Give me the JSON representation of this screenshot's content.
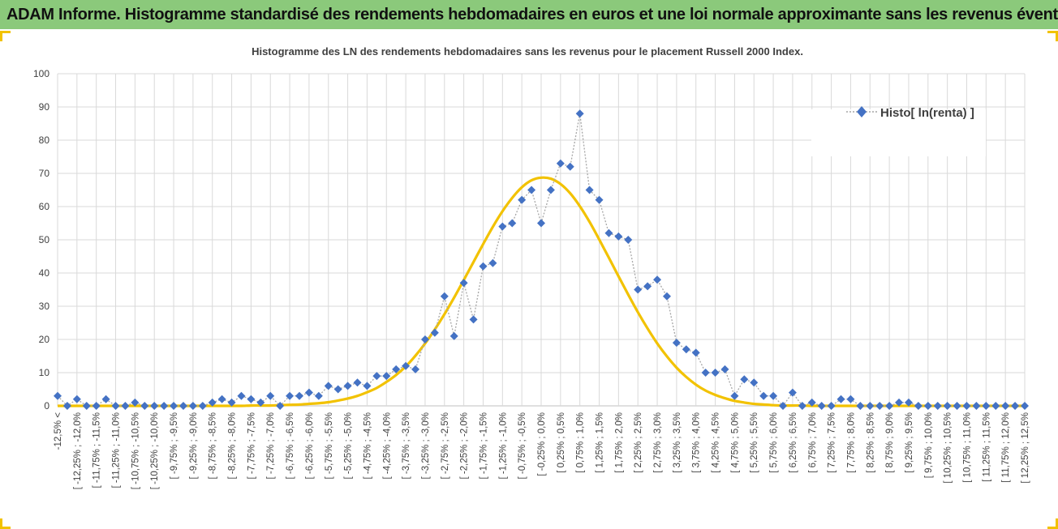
{
  "header": {
    "title": "ADAM Informe. Histogramme standardisé des rendements hebdomadaires en euros et une loi normale approximante sans les revenus éventuels"
  },
  "colors": {
    "banner": "#8bc97b",
    "series": "#4472c4",
    "curve": "#f2c200",
    "grid": "#d9d9d9",
    "accent": "#f2c200"
  },
  "chart_data": {
    "type": "line",
    "title": "Histogramme  des LN des rendements hebdomadaires sans les revenus pour le placement Russell 2000  Index.",
    "ylim": [
      0,
      100
    ],
    "yticks": [
      0,
      10,
      20,
      30,
      40,
      50,
      60,
      70,
      80,
      90,
      100
    ],
    "grid": true,
    "legend_position": "top-right",
    "x_tick_labels": [
      "-12,5% <",
      "[ -12,25% ; -12,0%",
      "[ -11,75% ; -11,5%",
      "[ -11,25% ; -11,0%",
      "[ -10,75% ; -10,5%",
      "[ -10,25% ; -10,0%",
      "[ -9,75% ; -9,5%",
      "[ -9,25% ; -9,0%",
      "[ -8,75% ; -8,5%",
      "[ -8,25% ; -8,0%",
      "[ -7,75% ; -7,5%",
      "[ -7,25% ; -7,0%",
      "[ -6,75% ; -6,5%",
      "[ -6,25% ; -6,0%",
      "[ -5,75% ; -5,5%",
      "[ -5,25% ; -5,0%",
      "[ -4,75% ; -4,5%",
      "[ -4,25% ; -4,0%",
      "[ -3,75% ; -3,5%",
      "[ -3,25% ; -3,0%",
      "[ -2,75% ; -2,5%",
      "[ -2,25% ; -2,0%",
      "[ -1,75% ; -1,5%",
      "[ -1,25% ; -1,0%",
      "[ -0,75% ; -0,5%",
      "[ -0,25% ; 0,0%",
      "[ 0,25% ; 0,5%",
      "[ 0,75% ; 1,0%",
      "[ 1,25% ; 1,5%",
      "[ 1,75% ; 2,0%",
      "[ 2,25% ; 2,5%",
      "[ 2,75% ; 3,0%",
      "[ 3,25% ; 3,5%",
      "[ 3,75% ; 4,0%",
      "[ 4,25% ; 4,5%",
      "[ 4,75% ; 5,0%",
      "[ 5,25% ; 5,5%",
      "[ 5,75% ; 6,0%",
      "[ 6,25% ; 6,5%",
      "[ 6,75% ; 7,0%",
      "[ 7,25% ; 7,5%",
      "[ 7,75% ; 8,0%",
      "[ 8,25% ; 8,5%",
      "[ 8,75% ; 9,0%",
      "[ 9,25% ; 9,5%",
      "[ 9,75% ; 10,0%",
      "[ 10,25% ; 10,5%",
      "[ 10,75% ; 11,0%",
      "[ 11,25% ; 11,5%",
      "[ 11,75% ; 12,0%",
      "[ 12,25% ; 12,5%"
    ],
    "series": [
      {
        "name": "Histo[ ln(renta) ]",
        "style": "dotted-line-diamond-markers",
        "values": [
          3,
          0,
          2,
          0,
          0,
          2,
          0,
          0,
          1,
          0,
          0,
          0,
          0,
          0,
          0,
          0,
          1,
          2,
          1,
          3,
          2,
          1,
          3,
          0,
          3,
          3,
          4,
          3,
          6,
          5,
          6,
          7,
          6,
          9,
          9,
          11,
          12,
          11,
          20,
          22,
          33,
          21,
          37,
          26,
          42,
          43,
          54,
          55,
          62,
          65,
          55,
          65,
          73,
          72,
          88,
          65,
          62,
          52,
          51,
          50,
          35,
          36,
          38,
          33,
          19,
          17,
          16,
          10,
          10,
          11,
          3,
          8,
          7,
          3,
          3,
          0,
          4,
          0,
          1,
          0,
          0,
          2,
          2,
          0,
          0,
          0,
          0,
          1,
          1,
          0,
          0,
          0,
          0,
          0,
          0,
          0,
          0,
          0,
          0,
          0,
          0
        ]
      },
      {
        "name": "",
        "style": "smooth-line",
        "values": [
          0,
          0,
          0,
          0,
          0,
          0,
          0,
          0,
          0,
          0,
          0,
          0,
          0,
          0,
          0,
          0,
          0,
          0,
          0,
          0,
          0.1,
          0.1,
          0.1,
          0.2,
          0.3,
          0.4,
          0.6,
          0.8,
          1.1,
          1.6,
          2.2,
          3.0,
          4.1,
          5.4,
          7.2,
          9.3,
          11.9,
          15.1,
          18.8,
          23.0,
          27.6,
          32.6,
          37.9,
          43.3,
          48.7,
          53.9,
          58.6,
          62.6,
          65.8,
          67.9,
          68.7,
          68.4,
          66.8,
          64.0,
          60.1,
          55.4,
          50.1,
          44.6,
          39.0,
          33.5,
          28.2,
          23.3,
          18.8,
          14.9,
          11.5,
          8.7,
          6.4,
          4.6,
          3.3,
          2.3,
          1.5,
          1.0,
          0.6,
          0.4,
          0.2,
          0.1,
          0.1,
          0.1,
          0,
          0,
          0,
          0,
          0,
          0,
          0,
          0,
          0,
          0,
          0,
          0,
          0,
          0,
          0,
          0,
          0,
          0,
          0,
          0,
          0,
          0,
          0
        ]
      }
    ]
  }
}
